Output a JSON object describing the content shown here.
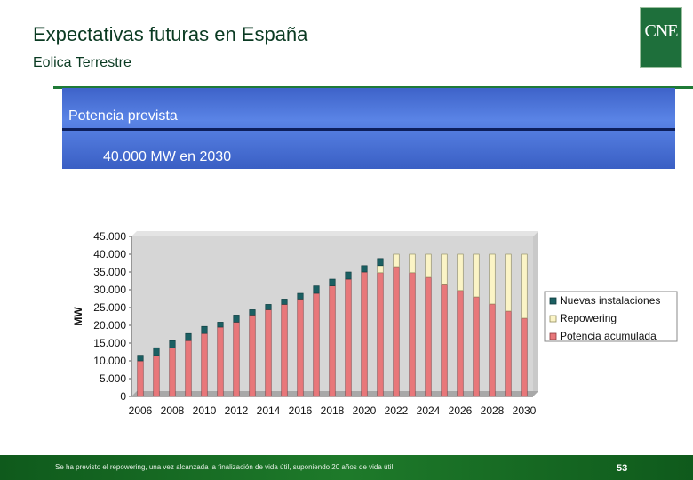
{
  "header": {
    "title": "Expectativas futuras en España",
    "subtitle": "Eolica Terrestre",
    "logo_text": "CNE"
  },
  "banner": {
    "line1": "Potencia prevista",
    "line2": "40.000 MW en 2030"
  },
  "chart_data": {
    "type": "bar",
    "stacked": true,
    "ylabel": "MW",
    "xlabel": "",
    "ylim": [
      0,
      45000
    ],
    "yticks": [
      "0",
      "5.000",
      "10.000",
      "15.000",
      "20.000",
      "25.000",
      "30.000",
      "35.000",
      "40.000",
      "45.000"
    ],
    "xtick_labels": [
      "2006",
      "2008",
      "2010",
      "2012",
      "2014",
      "2016",
      "2018",
      "2020",
      "2022",
      "2024",
      "2026",
      "2028",
      "2030"
    ],
    "categories": [
      "2006",
      "2007",
      "2008",
      "2009",
      "2010",
      "2011",
      "2012",
      "2013",
      "2014",
      "2015",
      "2016",
      "2017",
      "2018",
      "2019",
      "2020",
      "2021",
      "2022",
      "2023",
      "2024",
      "2025",
      "2026",
      "2027",
      "2028",
      "2029",
      "2030"
    ],
    "series": [
      {
        "name": "Potencia acumulada",
        "color": "#e8777a",
        "values": [
          10000,
          11500,
          13700,
          15700,
          17700,
          19500,
          20900,
          22900,
          24400,
          25900,
          27400,
          29000,
          31100,
          33000,
          35000,
          34800,
          36500,
          34800,
          33500,
          31400,
          29800,
          28000,
          26000,
          24000,
          22000
        ]
      },
      {
        "name": "Repowering",
        "color": "#fbf4c6",
        "values": [
          0,
          0,
          0,
          0,
          0,
          0,
          0,
          0,
          0,
          0,
          0,
          0,
          0,
          0,
          0,
          2000,
          3500,
          5200,
          6500,
          8600,
          10200,
          12000,
          14000,
          16000,
          18000
        ]
      },
      {
        "name": "Nuevas instalaciones",
        "color": "#1b5f62",
        "values": [
          1600,
          2200,
          2000,
          2000,
          2000,
          1400,
          2000,
          1500,
          1500,
          1500,
          1600,
          2100,
          1900,
          2000,
          1800,
          2000,
          0,
          0,
          0,
          0,
          0,
          0,
          0,
          0,
          0
        ]
      }
    ],
    "legend": [
      "Nuevas instalaciones",
      "Repowering",
      "Potencia acumulada"
    ],
    "legend_position": "right",
    "grid": false,
    "plot_background": "#d6d6d6"
  },
  "footer": {
    "note": "Se ha previsto el repowering, una vez alcanzada la finalización de vida útil, suponiendo 20 años de vida útil.",
    "page_number": "53"
  }
}
